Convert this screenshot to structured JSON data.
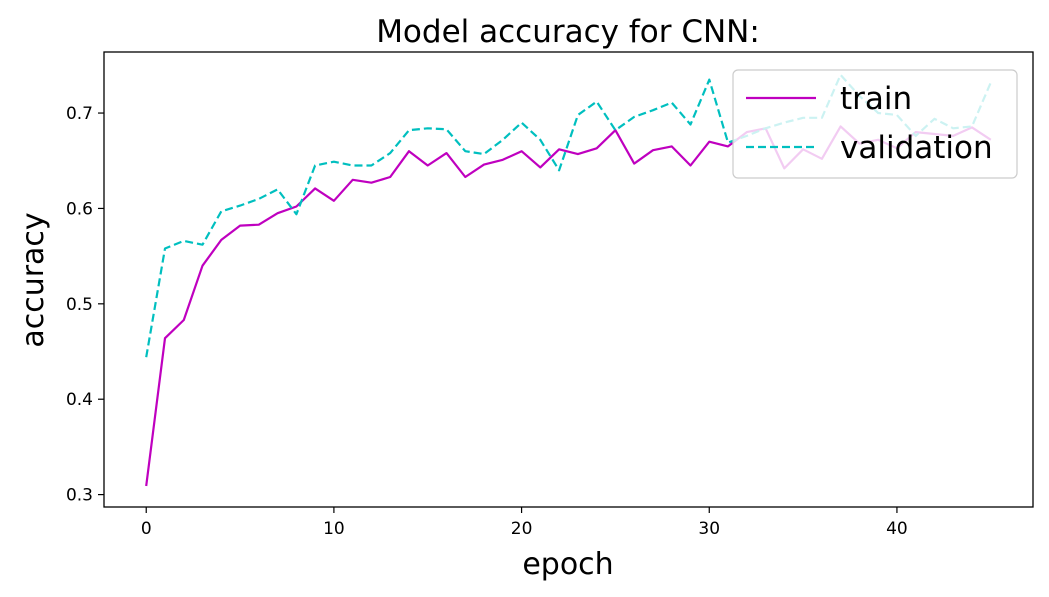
{
  "chart_data": {
    "type": "line",
    "title": "Model accuracy for CNN:",
    "xlabel": "epoch",
    "ylabel": "accuracy",
    "xlim": [
      -2.25,
      47.25
    ],
    "ylim": [
      0.287,
      0.764
    ],
    "xticks": [
      0,
      10,
      20,
      30,
      40
    ],
    "yticks": [
      0.3,
      0.4,
      0.5,
      0.6,
      0.7
    ],
    "xtick_labels": [
      "0",
      "10",
      "20",
      "30",
      "40"
    ],
    "ytick_labels": [
      "0.3",
      "0.4",
      "0.5",
      "0.6",
      "0.7"
    ],
    "grid": false,
    "legend": {
      "placement": "upper right"
    },
    "x": [
      0,
      1,
      2,
      3,
      4,
      5,
      6,
      7,
      8,
      9,
      10,
      11,
      12,
      13,
      14,
      15,
      16,
      17,
      18,
      19,
      20,
      21,
      22,
      23,
      24,
      25,
      26,
      27,
      28,
      29,
      30,
      31,
      32,
      33,
      34,
      35,
      36,
      37,
      38,
      39,
      40,
      41,
      42,
      43,
      44,
      45
    ],
    "series": [
      {
        "name": "train",
        "color": "#bf00bf",
        "style": "solid",
        "values": [
          0.309,
          0.464,
          0.483,
          0.54,
          0.567,
          0.582,
          0.583,
          0.595,
          0.602,
          0.621,
          0.608,
          0.63,
          0.627,
          0.633,
          0.66,
          0.645,
          0.658,
          0.633,
          0.646,
          0.651,
          0.66,
          0.643,
          0.662,
          0.657,
          0.663,
          0.682,
          0.647,
          0.661,
          0.665,
          0.645,
          0.67,
          0.665,
          0.68,
          0.684,
          0.642,
          0.662,
          0.652,
          0.686,
          0.668,
          0.672,
          0.663,
          0.68,
          0.678,
          0.676,
          0.685,
          0.672
        ]
      },
      {
        "name": "validation",
        "color": "#00bfbf",
        "style": "dashed",
        "values": [
          0.444,
          0.558,
          0.566,
          0.562,
          0.597,
          0.603,
          0.61,
          0.62,
          0.594,
          0.645,
          0.649,
          0.645,
          0.645,
          0.658,
          0.682,
          0.684,
          0.683,
          0.66,
          0.657,
          0.672,
          0.69,
          0.672,
          0.64,
          0.698,
          0.712,
          0.682,
          0.696,
          0.703,
          0.711,
          0.688,
          0.735,
          0.669,
          0.676,
          0.684,
          0.69,
          0.695,
          0.695,
          0.74,
          0.718,
          0.7,
          0.698,
          0.676,
          0.694,
          0.684,
          0.686,
          0.732
        ]
      }
    ]
  }
}
